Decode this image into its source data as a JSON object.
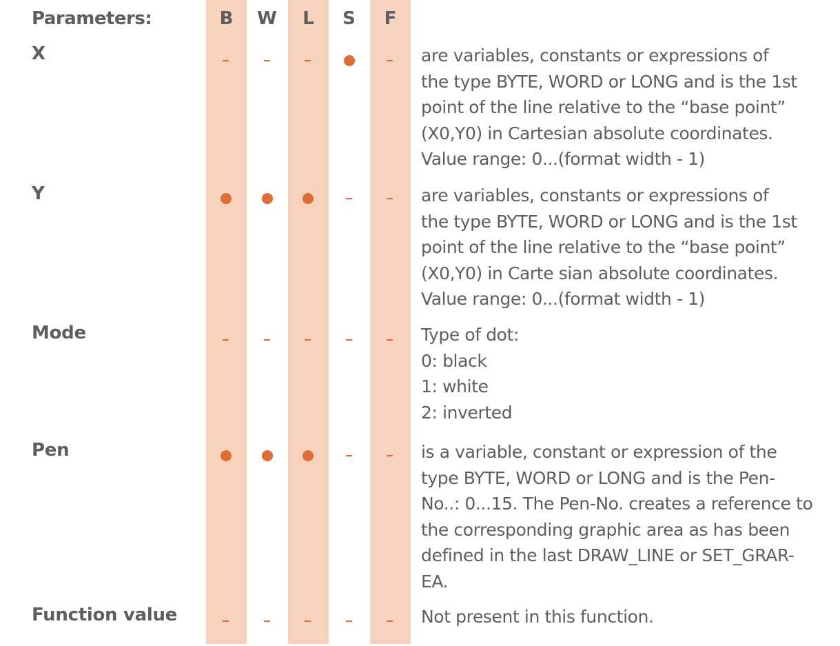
{
  "header": {
    "label": "Parameters:",
    "columns": [
      "B",
      "W",
      "L",
      "S",
      "F"
    ]
  },
  "colors": {
    "column_band": "#f7d3bd",
    "marker": "#e06c36",
    "text": "#5e5e5e"
  },
  "marker_legend": {
    "dot": "supported",
    "dash": "not supported"
  },
  "rows": [
    {
      "name": "X",
      "marks": [
        "dash",
        "dash",
        "dash",
        "dot",
        "dash"
      ],
      "description": [
        "are variables, constants or expressions of",
        "the type BYTE, WORD or LONG and is the 1st",
        "point of the line relative to the “base point”",
        "(X0,Y0) in Cartesian absolute coordinates.",
        "Value range: 0...(format width - 1)"
      ]
    },
    {
      "name": "Y",
      "marks": [
        "dot",
        "dot",
        "dot",
        "dash",
        "dash"
      ],
      "description": [
        "are variables, constants or expressions of",
        "the type BYTE, WORD or LONG and is the 1st",
        "point of the line relative to the “base point”",
        "(X0,Y0) in Carte sian absolute coordinates.",
        "Value range: 0...(format width - 1)"
      ]
    },
    {
      "name": "Mode",
      "marks": [
        "dash",
        "dash",
        "dash",
        "dash",
        "dash"
      ],
      "description": [
        "Type of dot:",
        "0: black",
        "1: white",
        "2: inverted"
      ]
    },
    {
      "name": "Pen",
      "marks": [
        "dot",
        "dot",
        "dot",
        "dash",
        "dash"
      ],
      "description": [
        "is a variable, constant or expression of the",
        "type BYTE, WORD or LONG and is the Pen-",
        "No..: 0...15. The Pen-No. creates a reference to",
        "the corresponding graphic area as has been",
        "defined in the last DRAW_LINE or SET_GRAR-",
        "EA."
      ]
    },
    {
      "name": "Function value",
      "marks": [
        "dash",
        "dash",
        "dash",
        "dash",
        "dash"
      ],
      "description": [
        "Not present in this function."
      ]
    }
  ]
}
